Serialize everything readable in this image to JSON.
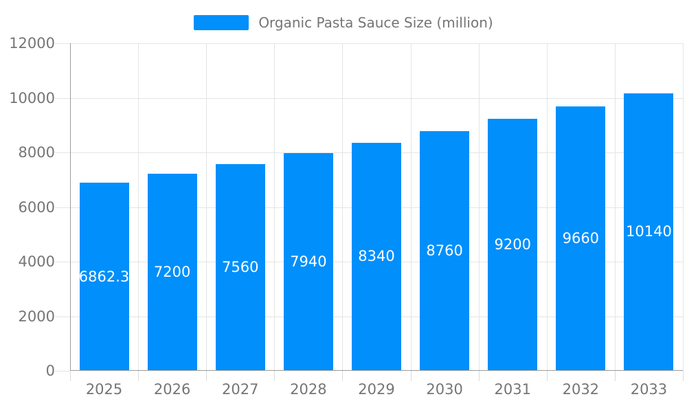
{
  "legend": {
    "label": "Organic Pasta Sauce Size (million)",
    "swatch_color": "#008FFB"
  },
  "chart_data": {
    "type": "bar",
    "title": "",
    "xlabel": "",
    "ylabel": "",
    "categories": [
      "2025",
      "2026",
      "2027",
      "2028",
      "2029",
      "2030",
      "2031",
      "2032",
      "2033"
    ],
    "series": [
      {
        "name": "Organic Pasta Sauce Size (million)",
        "values": [
          6862.3,
          7200,
          7560,
          7940,
          8340,
          8760,
          9200,
          9660,
          10140
        ],
        "data_labels": [
          "6862.3",
          "7200",
          "7560",
          "7940",
          "8340",
          "8760",
          "9200",
          "9660",
          "10140"
        ],
        "color": "#008FFB"
      }
    ],
    "ylim": [
      0,
      12000
    ],
    "ytick_step": 2000,
    "ytick_labels": [
      "0",
      "2000",
      "4000",
      "6000",
      "8000",
      "10000",
      "12000"
    ],
    "grid": "horizontal and vertical light gray gridlines",
    "legend_position": "top-center",
    "data_label_color": "#ffffff",
    "axis_label_color": "#757575",
    "grid_color": "#e4e4e4",
    "axis_line_color": "#9b9b9b",
    "background": "#ffffff"
  }
}
